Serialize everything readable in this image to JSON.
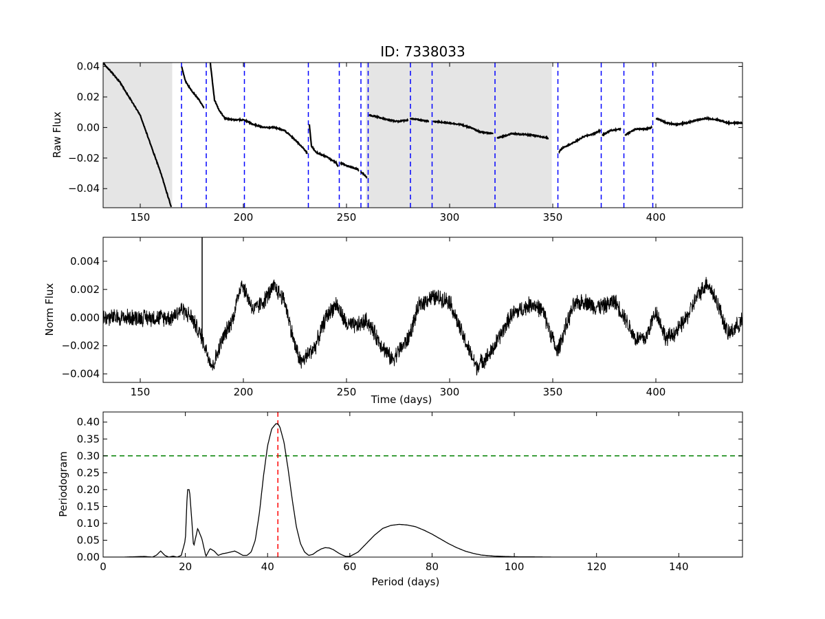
{
  "title": "ID: 7338033",
  "chart_data": [
    {
      "type": "line",
      "panel": "raw",
      "ylabel": "Raw Flux",
      "xlim": [
        132,
        442
      ],
      "ylim": [
        -0.0525,
        0.0425
      ],
      "xticks": [
        150,
        200,
        250,
        300,
        350,
        400
      ],
      "yticks": [
        -0.04,
        -0.02,
        0.0,
        0.02,
        0.04
      ],
      "ytick_labels": [
        "−0.04",
        "−0.02",
        "0.00",
        "0.02",
        "0.04"
      ],
      "shaded_regions": [
        [
          132,
          165.5
        ],
        [
          259.5,
          349.5
        ]
      ],
      "shade_color": "#e5e5e5",
      "quarter_boundaries": [
        170,
        182,
        200.5,
        231.5,
        246.5,
        257,
        260.5,
        281,
        291.5,
        322,
        352.5,
        373.5,
        384.5,
        398.5
      ],
      "boundary_color": "#0000ff",
      "segments": [
        {
          "x": [
            132,
            140,
            150,
            160,
            165
          ],
          "y": [
            0.0425,
            0.03,
            0.008,
            -0.03,
            -0.052
          ]
        },
        {
          "x": [
            170,
            172,
            175,
            178,
            181
          ],
          "y": [
            0.04,
            0.03,
            0.024,
            0.019,
            0.013
          ]
        },
        {
          "x": [
            184,
            185,
            186,
            188,
            191,
            195,
            200,
            205,
            210,
            215,
            220,
            225,
            230,
            231
          ],
          "y": [
            0.042,
            0.03,
            0.018,
            0.012,
            0.006,
            0.005,
            0.005,
            0.002,
            0.0,
            0.0,
            -0.002,
            -0.008,
            -0.015,
            -0.017
          ]
        },
        {
          "x": [
            232,
            233,
            235,
            240,
            245,
            246
          ],
          "y": [
            0.002,
            -0.012,
            -0.016,
            -0.019,
            -0.023,
            -0.026
          ]
        },
        {
          "x": [
            247,
            250,
            255,
            256
          ],
          "y": [
            -0.023,
            -0.025,
            -0.027,
            -0.028
          ]
        },
        {
          "x": [
            257,
            258,
            260
          ],
          "y": [
            -0.029,
            -0.03,
            -0.033
          ]
        },
        {
          "x": [
            261,
            265,
            270,
            275,
            280
          ],
          "y": [
            0.008,
            0.007,
            0.005,
            0.004,
            0.005
          ]
        },
        {
          "x": [
            281,
            285,
            290
          ],
          "y": [
            0.006,
            0.005,
            0.004
          ]
        },
        {
          "x": [
            292,
            300,
            305,
            310,
            315,
            321
          ],
          "y": [
            0.004,
            0.003,
            0.002,
            0.0,
            -0.003,
            -0.004
          ]
        },
        {
          "x": [
            323,
            330,
            340,
            348
          ],
          "y": [
            -0.007,
            -0.004,
            -0.005,
            -0.007
          ]
        },
        {
          "x": [
            353,
            355,
            360,
            365,
            370,
            373
          ],
          "y": [
            -0.016,
            -0.013,
            -0.01,
            -0.006,
            -0.004,
            -0.002
          ]
        },
        {
          "x": [
            374,
            378,
            383
          ],
          "y": [
            -0.005,
            -0.002,
            -0.001
          ]
        },
        {
          "x": [
            385,
            390,
            395,
            398
          ],
          "y": [
            -0.005,
            -0.001,
            -0.001,
            0.0
          ]
        },
        {
          "x": [
            400,
            402,
            405,
            410,
            415,
            420,
            425,
            430,
            435,
            442
          ],
          "y": [
            0.006,
            0.005,
            0.003,
            0.002,
            0.003,
            0.005,
            0.006,
            0.005,
            0.003,
            0.003
          ]
        }
      ]
    },
    {
      "type": "line",
      "panel": "norm",
      "ylabel": "Norm Flux",
      "xlabel": "Time (days)",
      "xlim": [
        132,
        442
      ],
      "ylim": [
        -0.0046,
        0.0057
      ],
      "xticks": [
        150,
        200,
        250,
        300,
        350,
        400
      ],
      "yticks": [
        -0.004,
        -0.002,
        0.0,
        0.002,
        0.004
      ],
      "ytick_labels": [
        "−0.004",
        "−0.002",
        "0.000",
        "0.002",
        "0.004"
      ],
      "noise_amplitude": 0.0007,
      "spike": {
        "x": 180,
        "y_min": -0.0016,
        "y_max": 0.0057
      },
      "x": [
        132,
        140,
        150,
        160,
        165,
        170,
        175,
        180,
        185,
        190,
        195,
        199,
        205,
        210,
        215,
        220,
        225,
        228,
        235,
        240,
        245,
        250,
        255,
        260,
        265,
        272,
        280,
        285,
        290,
        295,
        300,
        305,
        310,
        313,
        320,
        330,
        340,
        345,
        350,
        352,
        355,
        360,
        365,
        370,
        375,
        380,
        385,
        390,
        395,
        400,
        405,
        410,
        415,
        420,
        425,
        430,
        435,
        442
      ],
      "y": [
        0.0,
        0.0,
        0.0,
        0.0,
        0.0,
        0.0006,
        0.0,
        -0.0015,
        -0.0035,
        -0.0015,
        0.0,
        0.0025,
        0.0005,
        0.0012,
        0.0022,
        0.0012,
        -0.002,
        -0.0032,
        -0.002,
        0.0,
        0.001,
        -0.0005,
        -0.0006,
        -0.0002,
        -0.0015,
        -0.003,
        -0.0015,
        0.0008,
        0.0014,
        0.0014,
        0.0012,
        -0.0008,
        -0.0025,
        -0.0035,
        -0.0025,
        0.0002,
        0.001,
        0.0005,
        -0.0015,
        -0.0025,
        -0.0012,
        0.0008,
        0.0012,
        0.0008,
        0.0008,
        0.0012,
        0.0,
        -0.0015,
        -0.0015,
        0.0005,
        -0.0015,
        -0.001,
        0.0,
        0.0015,
        0.0025,
        0.001,
        -0.0012,
        -0.0002
      ]
    },
    {
      "type": "line",
      "panel": "periodogram",
      "ylabel": "Periodogram",
      "xlabel": "Period (days)",
      "xlim": [
        0,
        155.5
      ],
      "ylim": [
        0,
        0.43
      ],
      "xticks": [
        0,
        20,
        40,
        60,
        80,
        100,
        120,
        140
      ],
      "yticks": [
        0.0,
        0.05,
        0.1,
        0.15,
        0.2,
        0.25,
        0.3,
        0.35,
        0.4
      ],
      "ytick_labels": [
        "0.00",
        "0.05",
        "0.10",
        "0.15",
        "0.20",
        "0.25",
        "0.30",
        "0.35",
        "0.40"
      ],
      "peak_period": 42.5,
      "peak_color": "#ff0000",
      "threshold": 0.3,
      "threshold_color": "#008000",
      "x": [
        0,
        5,
        10,
        12,
        13,
        14,
        15,
        16,
        17,
        18,
        19,
        20,
        20.5,
        21,
        21.5,
        22,
        23,
        24,
        25,
        26,
        27,
        28,
        29,
        30,
        31,
        32,
        33,
        34,
        35,
        36,
        37,
        38,
        39,
        40,
        41,
        42,
        42.5,
        43,
        44,
        45,
        46,
        47,
        48,
        49,
        50,
        51,
        52,
        53,
        54,
        55,
        56,
        57,
        58,
        59,
        60,
        62,
        64,
        66,
        68,
        70,
        72,
        74,
        76,
        78,
        80,
        82,
        84,
        86,
        88,
        90,
        92,
        95,
        100,
        110,
        120,
        155.5
      ],
      "y": [
        0.0,
        0.0,
        0.002,
        0.0,
        0.006,
        0.018,
        0.005,
        0.0,
        0.003,
        0.0,
        0.005,
        0.05,
        0.2,
        0.2,
        0.12,
        0.03,
        0.085,
        0.055,
        0.002,
        0.025,
        0.018,
        0.005,
        0.01,
        0.012,
        0.015,
        0.018,
        0.012,
        0.005,
        0.005,
        0.015,
        0.05,
        0.13,
        0.24,
        0.33,
        0.38,
        0.395,
        0.395,
        0.385,
        0.34,
        0.26,
        0.17,
        0.09,
        0.04,
        0.015,
        0.005,
        0.008,
        0.017,
        0.024,
        0.028,
        0.027,
        0.022,
        0.014,
        0.007,
        0.002,
        0.002,
        0.015,
        0.04,
        0.065,
        0.085,
        0.094,
        0.097,
        0.095,
        0.09,
        0.08,
        0.068,
        0.054,
        0.04,
        0.028,
        0.018,
        0.011,
        0.006,
        0.003,
        0.001,
        0.0,
        0.0,
        0.0
      ]
    }
  ]
}
